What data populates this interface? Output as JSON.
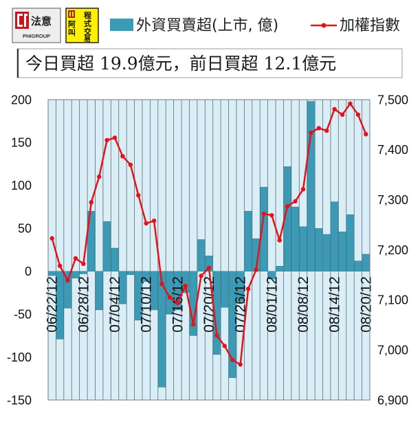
{
  "logos": {
    "phigroup": {
      "name": "法意",
      "sub": "PHIGROUP",
      "icon": "phi-logo-icon"
    },
    "program": {
      "chars": [
        "程",
        "阿",
        "式",
        "叫",
        "交",
        "易"
      ],
      "icon": "program-logo-icon"
    }
  },
  "headline": "今日買超 19.9億元，前日買超 12.1億元",
  "colors": {
    "bar": "#3b9ab5",
    "bar_edge": "#2c7f97",
    "line": "#e3131b",
    "plot_bg": "#d9eef6",
    "grid": "#5f6b70",
    "logo_yellow": "#fff100",
    "logo_red": "#c4161c"
  },
  "chart_data": {
    "type": "bar",
    "categories": [
      "06/22/12",
      "",
      "",
      "",
      "06/28/12",
      "",
      "",
      "",
      "07/04/12",
      "",
      "",
      "",
      "07/10/12",
      "",
      "",
      "",
      "07/16/12",
      "",
      "",
      "",
      "07/20/12",
      "",
      "",
      "",
      "07/26/12",
      "",
      "",
      "",
      "08/01/12",
      "",
      "",
      "",
      "08/08/12",
      "",
      "",
      "",
      "08/14/12",
      "",
      "",
      "",
      "08/20/12"
    ],
    "series": [
      {
        "name": "外資買賣超(上市, 億)",
        "type": "bar",
        "axis": "left",
        "values": [
          -5,
          -79,
          -43,
          -8,
          -3,
          70,
          -45,
          58,
          27,
          -38,
          -4,
          -57,
          -12,
          -45,
          -135,
          -50,
          -45,
          -25,
          -75,
          37,
          18,
          -97,
          -42,
          -124,
          -35,
          70,
          38,
          98,
          -9,
          6,
          122,
          75,
          52,
          198,
          50,
          43,
          81,
          46,
          66,
          12.1,
          19.9
        ]
      },
      {
        "name": "加權指數",
        "type": "line",
        "axis": "right",
        "values": [
          7223,
          7168,
          7139,
          7183,
          7172,
          7295,
          7346,
          7419,
          7424,
          7387,
          7370,
          7309,
          7253,
          7258,
          7132,
          7105,
          7094,
          7128,
          7051,
          7148,
          7164,
          7029,
          7008,
          6980,
          6971,
          7122,
          7160,
          7272,
          7269,
          7219,
          7287,
          7297,
          7321,
          7434,
          7443,
          7438,
          7481,
          7470,
          7492,
          7470,
          7431
        ]
      }
    ],
    "ylim": [
      -150,
      200
    ],
    "y_ticks": [
      {
        "value": 200,
        "label": "200"
      },
      {
        "value": 150,
        "label": "150"
      },
      {
        "value": 100,
        "label": "100"
      },
      {
        "value": 50,
        "label": "50"
      },
      {
        "value": 0,
        "label": "0"
      },
      {
        "value": -50,
        "label": "-50"
      },
      {
        "value": -100,
        "label": "-100"
      },
      {
        "value": -150,
        "label": "-150"
      }
    ],
    "y2lim": [
      6900,
      7500
    ],
    "y2_ticks": [
      {
        "value": 7500,
        "label": "7,500"
      },
      {
        "value": 7400,
        "label": "7,400"
      },
      {
        "value": 7300,
        "label": "7,300"
      },
      {
        "value": 7200,
        "label": "7,200"
      },
      {
        "value": 7100,
        "label": "7,100"
      },
      {
        "value": 7000,
        "label": "7,000"
      },
      {
        "value": 6900,
        "label": "6,900"
      }
    ],
    "grid": "vertical",
    "legend": "top"
  }
}
